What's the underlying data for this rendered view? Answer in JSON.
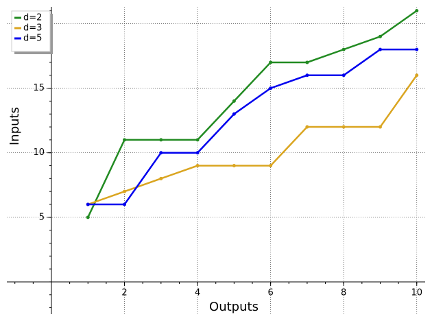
{
  "chart_data": {
    "type": "line",
    "x_label": "Outputs",
    "y_label": "Inputs",
    "x": [
      1,
      2,
      3,
      4,
      5,
      6,
      7,
      8,
      9,
      10
    ],
    "series": [
      {
        "name": "d=2",
        "color": "#228b22",
        "values": [
          5,
          11,
          11,
          11,
          14,
          17,
          17,
          18,
          19,
          21
        ]
      },
      {
        "name": "d=3",
        "color": "#daa520",
        "values": [
          6,
          7,
          8,
          9,
          9,
          9,
          12,
          12,
          12,
          16
        ]
      },
      {
        "name": "d=5",
        "color": "#0000ee",
        "values": [
          6,
          6,
          10,
          10,
          13,
          15,
          16,
          16,
          18,
          18
        ]
      }
    ],
    "xlim": [
      -1.22,
      10.23
    ],
    "ylim": [
      -2.5,
      21.3
    ],
    "xticks": [
      2,
      4,
      6,
      8,
      10
    ],
    "yticks": [
      5,
      10,
      15
    ],
    "xgrid": [
      2,
      4,
      6,
      8,
      10
    ],
    "ygrid": [
      5,
      10,
      15,
      20
    ],
    "grid": true,
    "legend": "upper left"
  }
}
